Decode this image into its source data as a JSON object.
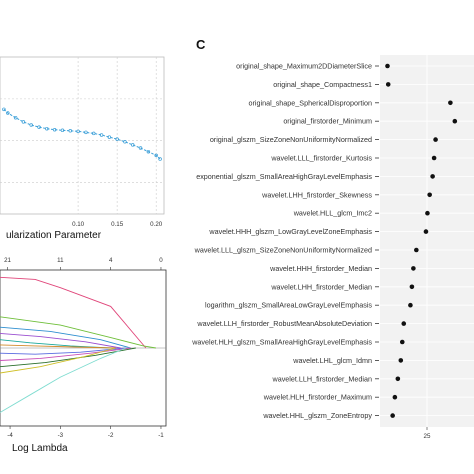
{
  "chart_data": [
    {
      "type": "line",
      "panel": "",
      "x_tick_labels": [
        "0.10",
        "0.15",
        "0.20"
      ],
      "xlabel": "ularization Parameter",
      "ylabel": "",
      "grid": true,
      "series": [
        {
          "x": [
            0.005,
            0.01,
            0.02,
            0.03,
            0.04,
            0.05,
            0.06,
            0.07,
            0.08,
            0.09,
            0.1,
            0.11,
            0.12,
            0.13,
            0.14,
            0.15,
            0.16,
            0.17,
            0.18,
            0.19,
            0.2,
            0.205
          ],
          "y": [
            0.5,
            0.493,
            0.484,
            0.476,
            0.47,
            0.466,
            0.463,
            0.461,
            0.46,
            0.459,
            0.458,
            0.456,
            0.454,
            0.451,
            0.447,
            0.443,
            0.438,
            0.432,
            0.426,
            0.419,
            0.412,
            0.405
          ],
          "color": "#3b9fd8"
        }
      ]
    },
    {
      "type": "line",
      "panel": "",
      "xlabel": "Log Lambda",
      "x_tick_labels": [
        "-4",
        "-3",
        "-2",
        "-1"
      ],
      "top_tick_labels": [
        "21",
        "11",
        "4",
        "0"
      ],
      "xlim": [
        -4.2,
        -0.9
      ],
      "series": [
        {
          "color": "#e0467a",
          "x": [
            -4.2,
            -3.5,
            -3.0,
            -2.0,
            -1.3
          ],
          "y": [
            0.68,
            0.66,
            0.58,
            0.4,
            0.0
          ]
        },
        {
          "color": "#6fbf3a",
          "x": [
            -4.2,
            -3.0,
            -2.0,
            -1.35,
            -1.1
          ],
          "y": [
            0.3,
            0.22,
            0.1,
            0.02,
            0.0
          ]
        },
        {
          "color": "#2f8fd0",
          "x": [
            -4.2,
            -3.2,
            -2.2,
            -1.6
          ],
          "y": [
            0.2,
            0.16,
            0.08,
            0.0
          ]
        },
        {
          "color": "#9a4fd0",
          "x": [
            -4.2,
            -3.4,
            -2.5,
            -1.8
          ],
          "y": [
            0.14,
            0.11,
            0.06,
            0.0
          ]
        },
        {
          "color": "#1aa89a",
          "x": [
            -4.2,
            -3.6,
            -2.8,
            -2.0
          ],
          "y": [
            0.08,
            0.05,
            0.02,
            0.0
          ]
        },
        {
          "color": "#d28a2a",
          "x": [
            -4.2,
            -3.5,
            -2.7,
            -1.9
          ],
          "y": [
            0.03,
            0.02,
            0.01,
            0.0
          ]
        },
        {
          "color": "#5a6be0",
          "x": [
            -4.2,
            -3.5,
            -2.6,
            -1.7
          ],
          "y": [
            -0.05,
            -0.06,
            -0.04,
            0.0
          ]
        },
        {
          "color": "#c94fb8",
          "x": [
            -4.2,
            -3.4,
            -2.4,
            -1.6
          ],
          "y": [
            -0.12,
            -0.1,
            -0.05,
            0.0
          ]
        },
        {
          "color": "#2a6f2a",
          "x": [
            -4.2,
            -3.3,
            -2.3,
            -1.5
          ],
          "y": [
            -0.18,
            -0.14,
            -0.07,
            0.0
          ]
        },
        {
          "color": "#d0c02a",
          "x": [
            -4.2,
            -3.4,
            -2.5,
            -1.9
          ],
          "y": [
            -0.24,
            -0.18,
            -0.08,
            0.0
          ]
        },
        {
          "color": "#7fdcd0",
          "x": [
            -4.2,
            -3.6,
            -3.0,
            -2.2,
            -1.7
          ],
          "y": [
            -0.62,
            -0.45,
            -0.28,
            -0.1,
            0.0
          ]
        }
      ]
    },
    {
      "type": "scatter",
      "panel": "C",
      "x_tick_labels": [
        "25"
      ],
      "xlim": [
        0,
        1
      ],
      "features": [
        {
          "label": "original_shape_Maximum2DDiameterSlice",
          "value": 0.02
        },
        {
          "label": "original_shape_Compactness1",
          "value": 0.03
        },
        {
          "label": "original_shape_SphericalDisproportion",
          "value": 0.87
        },
        {
          "label": "original_firstorder_Minimum",
          "value": 0.93
        },
        {
          "label": "original_glszm_SizeZoneNonUniformityNormalized",
          "value": 0.67
        },
        {
          "label": "wavelet.LLL_firstorder_Kurtosis",
          "value": 0.65
        },
        {
          "label": "exponential_glszm_SmallAreaHighGrayLevelEmphasis",
          "value": 0.63
        },
        {
          "label": "wavelet.LHH_firstorder_Skewness",
          "value": 0.59
        },
        {
          "label": "wavelet.HLL_glcm_Imc2",
          "value": 0.56
        },
        {
          "label": "wavelet.HHH_glszm_LowGrayLevelZoneEmphasis",
          "value": 0.54
        },
        {
          "label": "wavelet.LLL_glszm_SizeZoneNonUniformityNormalized",
          "value": 0.41
        },
        {
          "label": "wavelet.HHH_firstorder_Median",
          "value": 0.37
        },
        {
          "label": "wavelet.LHH_firstorder_Median",
          "value": 0.35
        },
        {
          "label": "logarithm_glszm_SmallAreaLowGrayLevelEmphasis",
          "value": 0.33
        },
        {
          "label": "wavelet.LLH_firstorder_RobustMeanAbsoluteDeviation",
          "value": 0.24
        },
        {
          "label": "wavelet.HLH_glszm_SmallAreaHighGrayLevelEmphasis",
          "value": 0.22
        },
        {
          "label": "wavelet.LHL_glcm_Idmn",
          "value": 0.2
        },
        {
          "label": "wavelet.LLH_firstorder_Median",
          "value": 0.16
        },
        {
          "label": "wavelet.HLH_firstorder_Maximum",
          "value": 0.12
        },
        {
          "label": "wavelet.HHL_glszm_ZoneEntropy",
          "value": 0.09
        }
      ],
      "point_color": "#111111",
      "background": "#f2f2f2"
    }
  ]
}
